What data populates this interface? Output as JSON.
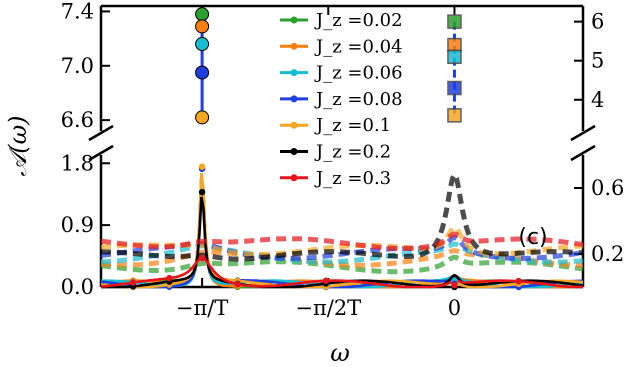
{
  "chart_data": {
    "type": "line",
    "panel_label": "(c)",
    "xlabel": "ω",
    "ylabel": "𝒜(ω)",
    "x_ticks": [
      {
        "value": -3.1416,
        "label": "−π/T"
      },
      {
        "value": -1.5708,
        "label": "−π/2T"
      },
      {
        "value": 0,
        "label": "0"
      }
    ],
    "xlim": [
      -4.4,
      1.6
    ],
    "left_axis": {
      "upper": {
        "ylim": [
          6.52,
          7.44
        ],
        "ticks": [
          "6.6",
          "7.0",
          "7.4"
        ],
        "tick_values": [
          6.6,
          7.0,
          7.4
        ]
      },
      "lower": {
        "ylim": [
          0,
          1.92
        ],
        "ticks": [
          "0.0",
          "0.9",
          "1.8"
        ],
        "tick_values": [
          0,
          0.9,
          1.8
        ]
      }
    },
    "right_axis": {
      "upper": {
        "ylim": [
          3.2,
          6.4
        ],
        "ticks": [
          "4",
          "5",
          "6"
        ],
        "tick_values": [
          4,
          5,
          6
        ]
      },
      "lower": {
        "ylim": [
          0,
          0.8
        ],
        "ticks": [
          "0.2",
          "0.6"
        ],
        "tick_values": [
          0.2,
          0.6
        ]
      }
    },
    "legend_position": "top-center",
    "series": [
      {
        "name": "J_z =0.02",
        "color": "#2ca02c",
        "upper_left": 7.38,
        "upper_right": 6.0,
        "peak_lower_left": 1.72,
        "peak_zero": 0.18,
        "base": 0.12
      },
      {
        "name": "J_z =0.04",
        "color": "#ff7f0e",
        "upper_left": 7.29,
        "upper_right": 5.4,
        "peak_lower_left": 1.72,
        "peak_zero": 0.22,
        "base": 0.16
      },
      {
        "name": "J_z =0.06",
        "color": "#17becf",
        "upper_left": 7.16,
        "upper_right": 5.1,
        "peak_lower_left": 1.72,
        "peak_zero": 0.26,
        "base": 0.18
      },
      {
        "name": "J_z =0.08",
        "color": "#1f3fe0",
        "upper_left": 6.95,
        "upper_right": 4.3,
        "peak_lower_left": 1.72,
        "peak_zero": 0.3,
        "base": 0.2
      },
      {
        "name": "J_z =0.1",
        "color": "#f5a623",
        "upper_left": 6.62,
        "upper_right": 3.6,
        "peak_lower_left": 1.75,
        "peak_zero": 0.36,
        "base": 0.22
      },
      {
        "name": "J_z =0.2",
        "color": "#000000",
        "upper_left": null,
        "upper_right": null,
        "peak_lower_left": 1.38,
        "peak_zero": 0.68,
        "base": 0.18
      },
      {
        "name": "J_z =0.3",
        "color": "#e8141b",
        "upper_left": null,
        "upper_right": null,
        "peak_lower_left": 0.42,
        "peak_zero": 0.32,
        "base": 0.26
      }
    ]
  }
}
